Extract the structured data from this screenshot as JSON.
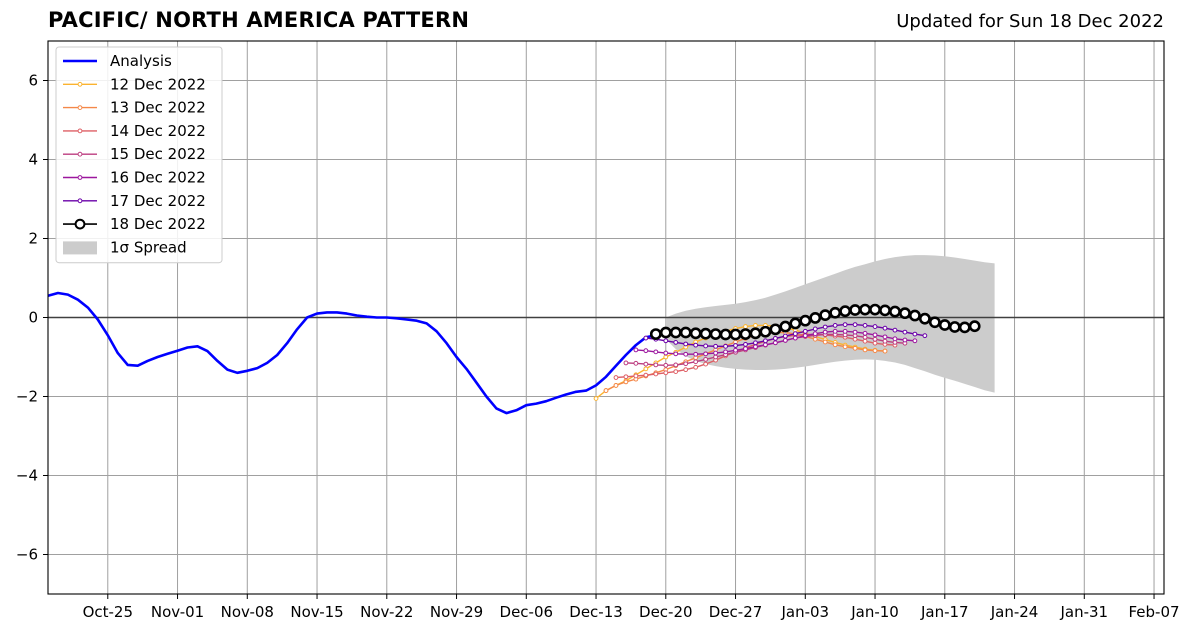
{
  "header": {
    "title": "PACIFIC/ NORTH AMERICA PATTERN",
    "updated": "Updated for Sun 18 Dec 2022"
  },
  "chart_data": {
    "type": "line",
    "title": "PACIFIC/ NORTH AMERICA PATTERN",
    "subtitle": "Updated for Sun 18 Dec 2022",
    "xlabel": "",
    "ylabel": "",
    "x_range_days": [
      0,
      112
    ],
    "ylim": [
      -7,
      7
    ],
    "x_ticks": [
      {
        "day": 6,
        "label": "Oct-25"
      },
      {
        "day": 13,
        "label": "Nov-01"
      },
      {
        "day": 20,
        "label": "Nov-08"
      },
      {
        "day": 27,
        "label": "Nov-15"
      },
      {
        "day": 34,
        "label": "Nov-22"
      },
      {
        "day": 41,
        "label": "Nov-29"
      },
      {
        "day": 48,
        "label": "Dec-06"
      },
      {
        "day": 55,
        "label": "Dec-13"
      },
      {
        "day": 62,
        "label": "Dec-20"
      },
      {
        "day": 69,
        "label": "Dec-27"
      },
      {
        "day": 76,
        "label": "Jan-03"
      },
      {
        "day": 83,
        "label": "Jan-10"
      },
      {
        "day": 90,
        "label": "Jan-17"
      },
      {
        "day": 97,
        "label": "Jan-24"
      },
      {
        "day": 104,
        "label": "Jan-31"
      },
      {
        "day": 111,
        "label": "Feb-07"
      }
    ],
    "y_ticks": [
      -6,
      -4,
      -2,
      0,
      2,
      4,
      6
    ],
    "y_tick_labels": [
      "−6",
      "−4",
      "−2",
      "0",
      "2",
      "4",
      "6"
    ],
    "grid": true,
    "legend_position": "top-left",
    "legend": [
      {
        "label": "Analysis",
        "color": "#0000ff",
        "style": "analysis"
      },
      {
        "label": "12 Dec 2022",
        "color": "#fbb32f",
        "style": "forecast"
      },
      {
        "label": "13 Dec 2022",
        "color": "#f48849",
        "style": "forecast"
      },
      {
        "label": "14 Dec 2022",
        "color": "#de5f65",
        "style": "forecast"
      },
      {
        "label": "15 Dec 2022",
        "color": "#bc3c7f",
        "style": "forecast"
      },
      {
        "label": "16 Dec 2022",
        "color": "#9c179e",
        "style": "forecast"
      },
      {
        "label": "17 Dec 2022",
        "color": "#6a00a8",
        "style": "forecast"
      },
      {
        "label": "18 Dec 2022",
        "color": "#000000",
        "style": "current"
      },
      {
        "label": "1σ Spread",
        "color": "#cccccc",
        "style": "band"
      }
    ],
    "analysis": {
      "name": "Analysis",
      "color": "#0000ff",
      "start_day": 0,
      "values": [
        0.55,
        0.62,
        0.58,
        0.45,
        0.25,
        -0.05,
        -0.45,
        -0.9,
        -1.2,
        -1.22,
        -1.1,
        -1.0,
        -0.92,
        -0.84,
        -0.76,
        -0.73,
        -0.85,
        -1.1,
        -1.32,
        -1.4,
        -1.35,
        -1.28,
        -1.15,
        -0.95,
        -0.65,
        -0.3,
        0.0,
        0.1,
        0.13,
        0.13,
        0.1,
        0.05,
        0.02,
        0.0,
        0.0,
        -0.02,
        -0.05,
        -0.08,
        -0.15,
        -0.35,
        -0.65,
        -1.0,
        -1.3,
        -1.65,
        -2.0,
        -2.3,
        -2.42,
        -2.35,
        -2.22,
        -2.18,
        -2.12,
        -2.03,
        -1.95,
        -1.88,
        -1.85,
        -1.72,
        -1.5,
        -1.22,
        -0.95,
        -0.7,
        -0.5,
        -0.45
      ]
    },
    "forecasts": [
      {
        "name": "12 Dec 2022",
        "color": "#fbb32f",
        "start_day": 55,
        "values": [
          -2.05,
          -1.85,
          -1.72,
          -1.6,
          -1.45,
          -1.3,
          -1.15,
          -1.0,
          -0.88,
          -0.75,
          -0.62,
          -0.52,
          -0.42,
          -0.35,
          -0.28,
          -0.23,
          -0.2,
          -0.2,
          -0.22,
          -0.26,
          -0.32,
          -0.4,
          -0.48,
          -0.56,
          -0.63,
          -0.7,
          -0.75,
          -0.8,
          -0.83,
          -0.85
        ]
      },
      {
        "name": "13 Dec 2022",
        "color": "#f48849",
        "start_day": 56,
        "values": [
          -1.85,
          -1.72,
          -1.63,
          -1.56,
          -1.48,
          -1.4,
          -1.32,
          -1.22,
          -1.12,
          -1.02,
          -0.92,
          -0.82,
          -0.72,
          -0.62,
          -0.53,
          -0.45,
          -0.4,
          -0.38,
          -0.38,
          -0.42,
          -0.48,
          -0.55,
          -0.62,
          -0.69,
          -0.74,
          -0.78,
          -0.82,
          -0.84,
          -0.85
        ]
      },
      {
        "name": "14 Dec 2022",
        "color": "#de5f65",
        "start_day": 57,
        "values": [
          -1.52,
          -1.5,
          -1.48,
          -1.46,
          -1.43,
          -1.4,
          -1.37,
          -1.32,
          -1.26,
          -1.18,
          -1.08,
          -0.97,
          -0.87,
          -0.77,
          -0.68,
          -0.6,
          -0.53,
          -0.48,
          -0.45,
          -0.43,
          -0.43,
          -0.44,
          -0.47,
          -0.5,
          -0.55,
          -0.6,
          -0.65,
          -0.68,
          -0.7
        ]
      },
      {
        "name": "15 Dec 2022",
        "color": "#bc3c7f",
        "start_day": 58,
        "values": [
          -1.15,
          -1.16,
          -1.18,
          -1.2,
          -1.21,
          -1.2,
          -1.17,
          -1.12,
          -1.06,
          -1.0,
          -0.94,
          -0.88,
          -0.82,
          -0.76,
          -0.7,
          -0.64,
          -0.58,
          -0.52,
          -0.48,
          -0.45,
          -0.43,
          -0.43,
          -0.44,
          -0.46,
          -0.5,
          -0.55,
          -0.6,
          -0.63,
          -0.65
        ]
      },
      {
        "name": "16 Dec 2022",
        "color": "#9c179e",
        "start_day": 59,
        "values": [
          -0.82,
          -0.84,
          -0.87,
          -0.9,
          -0.92,
          -0.93,
          -0.93,
          -0.92,
          -0.9,
          -0.87,
          -0.83,
          -0.79,
          -0.74,
          -0.69,
          -0.64,
          -0.58,
          -0.52,
          -0.46,
          -0.41,
          -0.37,
          -0.35,
          -0.35,
          -0.37,
          -0.4,
          -0.44,
          -0.49,
          -0.54,
          -0.57,
          -0.59
        ]
      },
      {
        "name": "17 Dec 2022",
        "color": "#6a00a8",
        "start_day": 60,
        "values": [
          -0.52,
          -0.55,
          -0.59,
          -0.63,
          -0.67,
          -0.7,
          -0.72,
          -0.73,
          -0.73,
          -0.71,
          -0.68,
          -0.64,
          -0.59,
          -0.53,
          -0.47,
          -0.41,
          -0.35,
          -0.29,
          -0.24,
          -0.2,
          -0.18,
          -0.18,
          -0.2,
          -0.23,
          -0.27,
          -0.32,
          -0.37,
          -0.42,
          -0.46
        ]
      }
    ],
    "current": {
      "name": "18 Dec 2022",
      "color": "#000000",
      "start_day": 61,
      "values": [
        -0.42,
        -0.38,
        -0.38,
        -0.38,
        -0.4,
        -0.41,
        -0.42,
        -0.43,
        -0.43,
        -0.42,
        -0.4,
        -0.36,
        -0.3,
        -0.23,
        -0.15,
        -0.08,
        -0.01,
        0.06,
        0.12,
        0.16,
        0.19,
        0.2,
        0.2,
        0.18,
        0.15,
        0.11,
        0.05,
        -0.03,
        -0.12,
        -0.19,
        -0.24,
        -0.25,
        -0.22
      ]
    },
    "spread": {
      "label": "1σ Spread",
      "color": "#cccccc",
      "start_day": 62,
      "upper": [
        0.0,
        0.1,
        0.17,
        0.22,
        0.26,
        0.29,
        0.32,
        0.35,
        0.39,
        0.44,
        0.5,
        0.58,
        0.66,
        0.75,
        0.84,
        0.93,
        1.02,
        1.11,
        1.2,
        1.28,
        1.35,
        1.42,
        1.48,
        1.53,
        1.56,
        1.58,
        1.58,
        1.57,
        1.55,
        1.52,
        1.48,
        1.44,
        1.4,
        1.37
      ],
      "lower": [
        -0.55,
        -0.8,
        -0.98,
        -1.1,
        -1.18,
        -1.23,
        -1.27,
        -1.3,
        -1.32,
        -1.33,
        -1.33,
        -1.32,
        -1.3,
        -1.27,
        -1.24,
        -1.2,
        -1.16,
        -1.12,
        -1.09,
        -1.07,
        -1.06,
        -1.07,
        -1.1,
        -1.14,
        -1.2,
        -1.28,
        -1.36,
        -1.45,
        -1.53,
        -1.6,
        -1.68,
        -1.76,
        -1.84,
        -1.9
      ]
    }
  }
}
